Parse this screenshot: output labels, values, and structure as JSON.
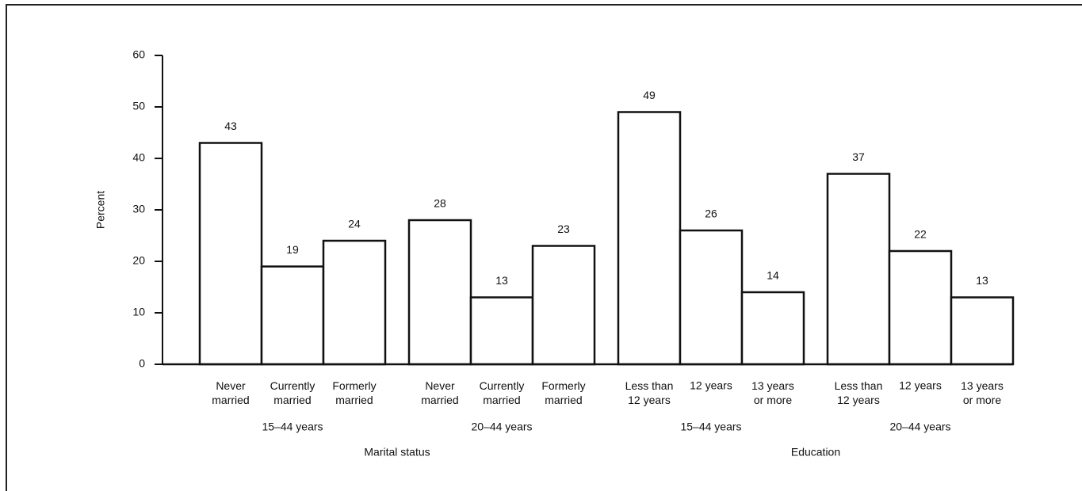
{
  "chart_data": {
    "type": "bar",
    "ylabel": "Percent",
    "categories": [
      "Never\nmarried",
      "Currently\nmarried",
      "Formerly\nmarried",
      "Never\nmarried",
      "Currently\nmarried",
      "Formerly\nmarried",
      "Less than\n12 years",
      "12 years",
      "13 years\nor more",
      "Less than\n12 years",
      "12 years",
      "13 years\nor more"
    ],
    "values": [
      43,
      19,
      24,
      28,
      13,
      23,
      49,
      26,
      14,
      37,
      22,
      13
    ],
    "groups": [
      "15–44 years",
      "20–44 years",
      "15–44 years",
      "20–44 years"
    ],
    "supergroups": [
      "Marital status",
      "Education"
    ],
    "color": "#ffffff",
    "ylim": [
      0,
      60
    ],
    "yticks": [
      0,
      10,
      20,
      30,
      40,
      50,
      60
    ],
    "grid": false
  }
}
